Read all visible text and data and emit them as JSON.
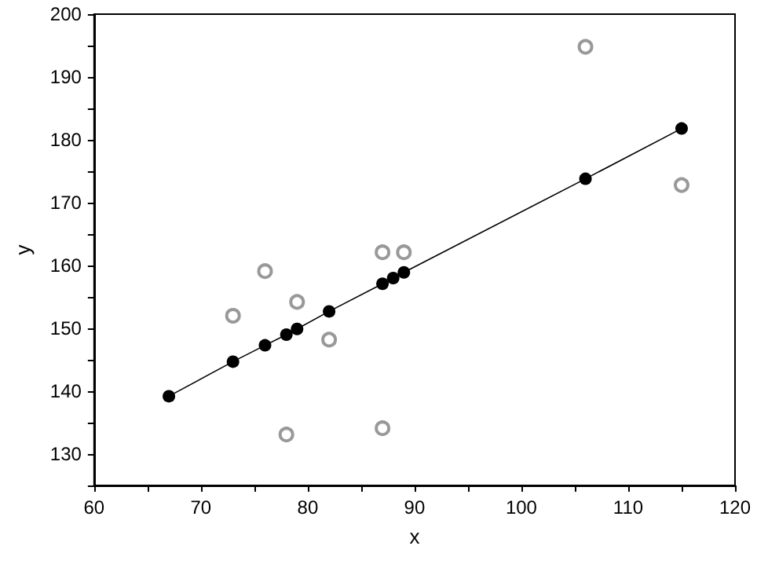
{
  "chart_data": {
    "type": "scatter",
    "xlabel": "x",
    "ylabel": "y",
    "xlim": [
      60,
      120
    ],
    "xticks": [
      60,
      {
        "value": 65,
        "label": null
      },
      70,
      {
        "value": 75,
        "label": null
      },
      80,
      {
        "value": 85,
        "label": null
      },
      90,
      {
        "value": 95,
        "label": null
      },
      100,
      {
        "value": 105,
        "label": null
      },
      110,
      {
        "value": 115,
        "label": null
      },
      120
    ],
    "ylim": [
      125,
      200
    ],
    "yticks": [
      {
        "value": 125,
        "label": null
      },
      130,
      {
        "value": 135,
        "label": null
      },
      140,
      {
        "value": 145,
        "label": null
      },
      150,
      {
        "value": 155,
        "label": null
      },
      160,
      {
        "value": 165,
        "label": null
      },
      170,
      {
        "value": 175,
        "label": null
      },
      180,
      {
        "value": 185,
        "label": null
      },
      190,
      {
        "value": 195,
        "label": null
      },
      200
    ],
    "grid": false,
    "marker": "circle",
    "series": [
      {
        "color": "#808080",
        "x": [
          73,
          76,
          78,
          79,
          82,
          87,
          87,
          89,
          106,
          115
        ],
        "values": [
          152.0,
          159.1,
          133.1,
          154.2,
          148.2,
          162.1,
          134.1,
          162.1,
          194.8,
          172.8
        ]
      },
      {
        "type": "line",
        "color": "#000000",
        "line_style": "solid",
        "x": [
          67,
          73,
          76,
          78,
          79,
          82,
          87,
          88,
          89,
          106,
          115
        ],
        "values": [
          139.2,
          144.7,
          147.3,
          149.0,
          149.9,
          152.7,
          157.1,
          158.0,
          158.9,
          173.8,
          181.8
        ]
      }
    ]
  }
}
